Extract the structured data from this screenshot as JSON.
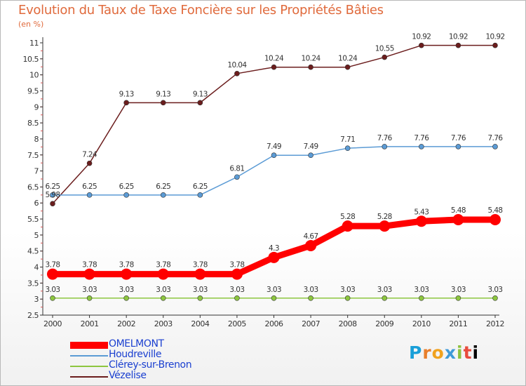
{
  "chart_data": {
    "type": "line",
    "title": "Evolution du Taux de Taxe Foncière sur les Propriétés Bâties",
    "ylabel": "(en %)",
    "xlabel": "",
    "ylim": [
      2.5,
      11
    ],
    "yticks": [
      "2.5",
      "3",
      "3.5",
      "4",
      "4.5",
      "5",
      "5.5",
      "6",
      "6.5",
      "7",
      "7.5",
      "8",
      "8.5",
      "9",
      "9.5",
      "10",
      "10.5",
      "11"
    ],
    "categories": [
      "2000",
      "2001",
      "2002",
      "2003",
      "2004",
      "2005",
      "2006",
      "2007",
      "2008",
      "2009",
      "2010",
      "2011",
      "2012"
    ],
    "series": [
      {
        "name": "OMELMONT",
        "color": "#ff0000",
        "values": [
          3.78,
          3.78,
          3.78,
          3.78,
          3.78,
          3.78,
          4.3,
          4.67,
          5.28,
          5.28,
          5.43,
          5.48,
          5.48
        ],
        "labels": [
          "3.78",
          "3.78",
          "3.78",
          "3.78",
          "3.78",
          "3.78",
          "4.3",
          "4.67",
          "5.28",
          "5.28",
          "5.43",
          "5.48",
          "5.48"
        ]
      },
      {
        "name": "Houdreville",
        "color": "#5b9bd5",
        "values": [
          6.25,
          6.25,
          6.25,
          6.25,
          6.25,
          6.81,
          7.49,
          7.49,
          7.71,
          7.76,
          7.76,
          7.76,
          7.76
        ],
        "labels": [
          "6.25",
          "6.25",
          "6.25",
          "6.25",
          "6.25",
          "6.81",
          "7.49",
          "7.49",
          "7.71",
          "7.76",
          "7.76",
          "7.76",
          "7.76"
        ]
      },
      {
        "name": "Clérey-sur-Brenon",
        "color": "#8dc63f",
        "values": [
          3.03,
          3.03,
          3.03,
          3.03,
          3.03,
          3.03,
          3.03,
          3.03,
          3.03,
          3.03,
          3.03,
          3.03,
          3.03
        ],
        "labels": [
          "3.03",
          "3.03",
          "3.03",
          "3.03",
          "3.03",
          "3.03",
          "3.03",
          "3.03",
          "3.03",
          "3.03",
          "3.03",
          "3.03",
          "3.03"
        ]
      },
      {
        "name": "Vézelise",
        "color": "#6b1d1d",
        "values": [
          5.98,
          7.24,
          9.13,
          9.13,
          9.13,
          10.04,
          10.24,
          10.24,
          10.24,
          10.55,
          10.92,
          10.92,
          10.92
        ],
        "labels": [
          "5.98",
          "7.24",
          "9.13",
          "9.13",
          "9.13",
          "10.04",
          "10.24",
          "10.24",
          "10.24",
          "10.55",
          "10.92",
          "10.92",
          "10.92"
        ]
      }
    ],
    "grid": false,
    "legend": "bottom-left"
  },
  "branding": {
    "letters": [
      "P",
      "r",
      "o",
      "x",
      "i",
      "t",
      "i"
    ]
  }
}
